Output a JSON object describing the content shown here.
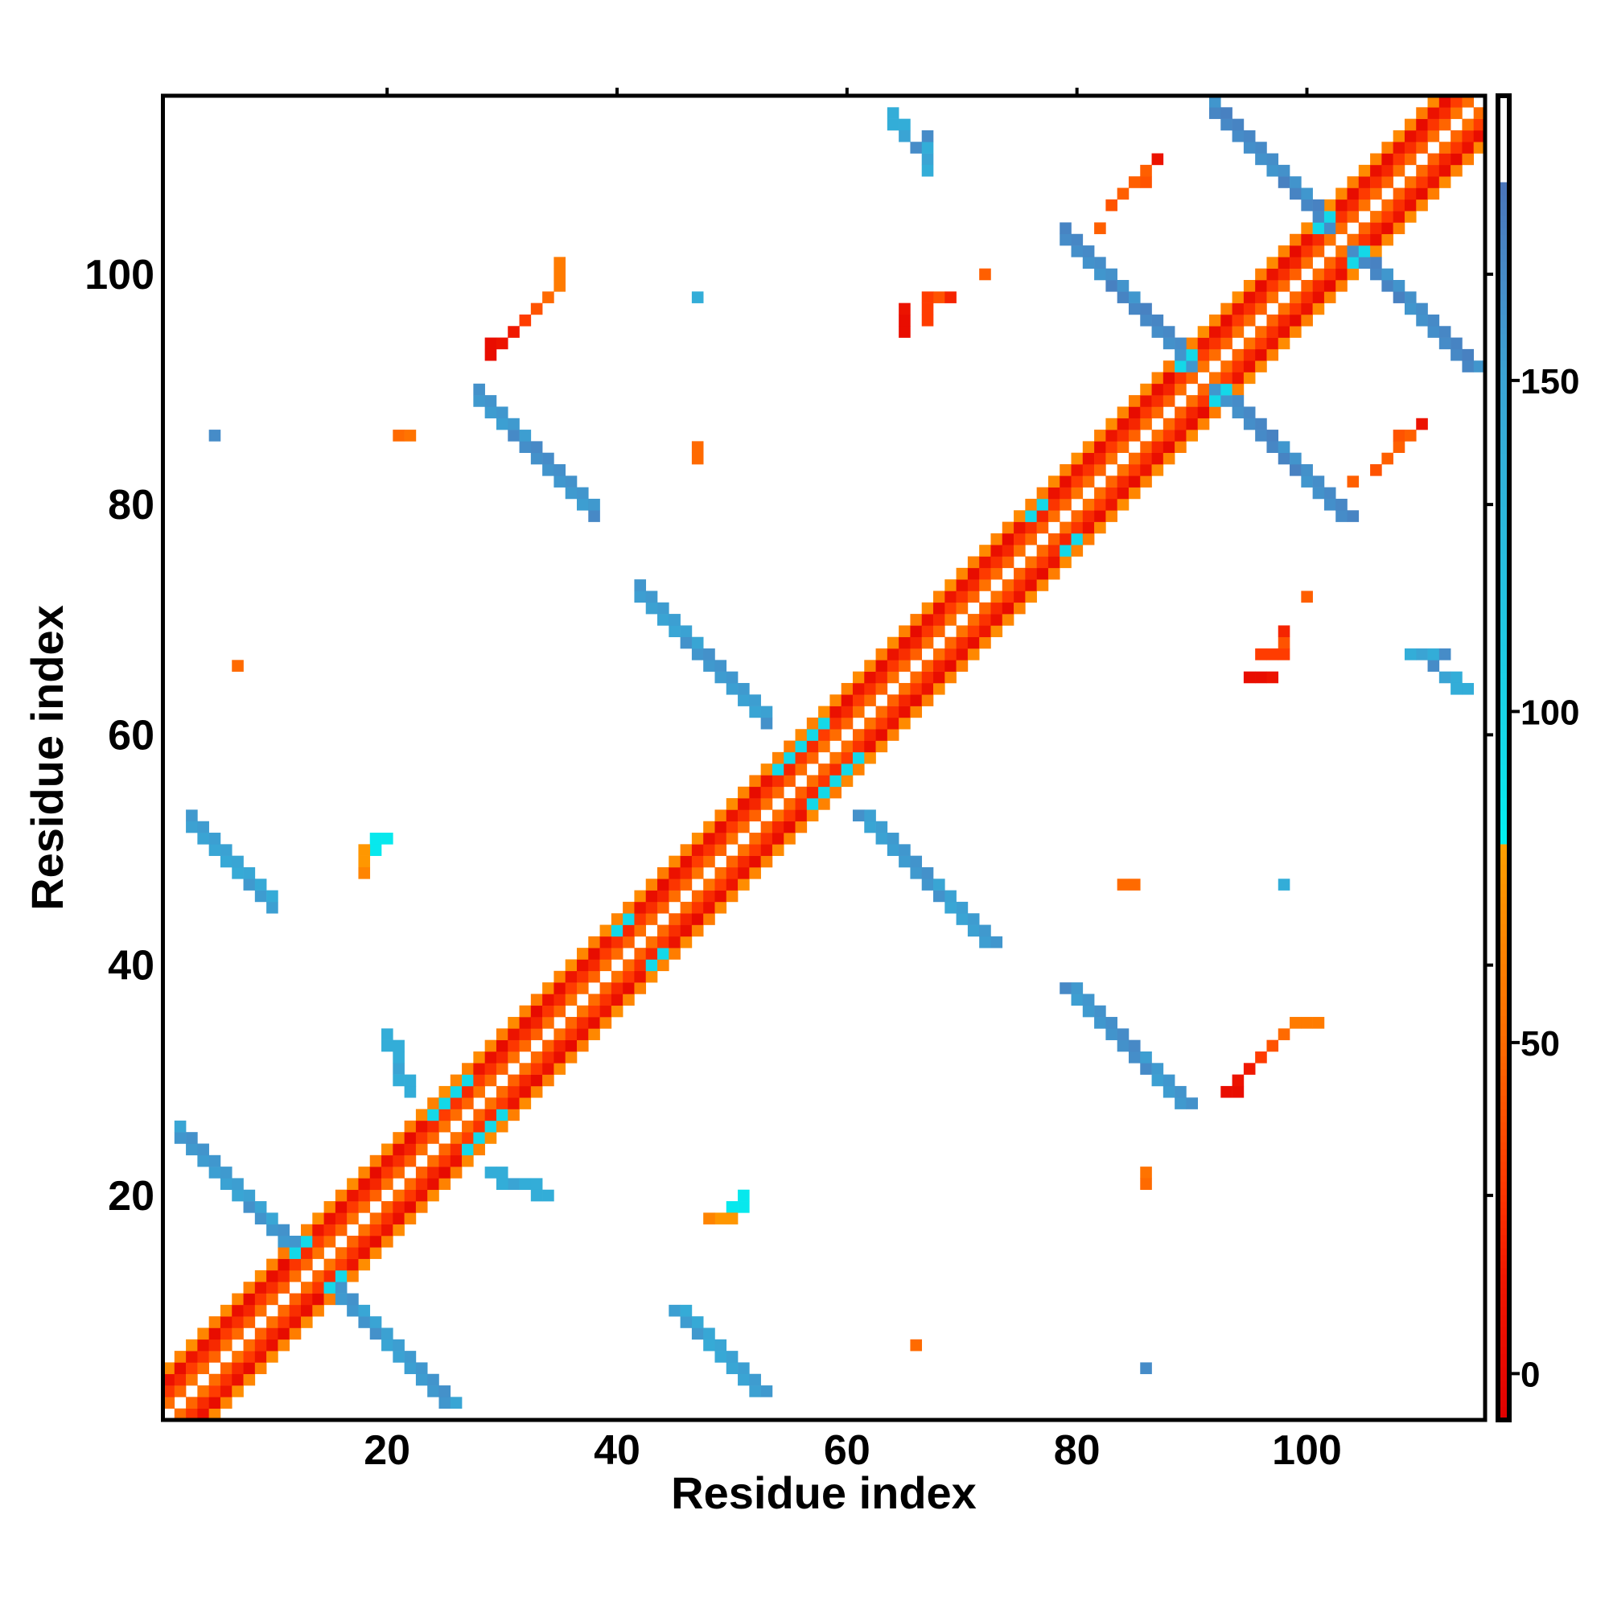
{
  "chart_data": {
    "type": "heatmap",
    "title": "",
    "xlabel": "Residue index",
    "ylabel": "Residue index",
    "xlim": [
      0.5,
      115.5
    ],
    "ylim": [
      0.5,
      115.5
    ],
    "n_residues": 115,
    "x_ticks": [
      20,
      40,
      60,
      80,
      100
    ],
    "y_ticks": [
      20,
      40,
      60,
      80,
      100
    ],
    "colorbar": {
      "range": [
        -7,
        193
      ],
      "ticks": [
        0,
        50,
        100,
        150
      ],
      "stops": [
        {
          "value": -7,
          "color": "#e00000"
        },
        {
          "value": 15,
          "color": "#f01800"
        },
        {
          "value": 30,
          "color": "#ff3c00"
        },
        {
          "value": 50,
          "color": "#ff6a00"
        },
        {
          "value": 65,
          "color": "#ff8400"
        },
        {
          "value": 80,
          "color": "#ffa000"
        },
        {
          "value": 80.01,
          "color": "#00f0f0"
        },
        {
          "value": 95,
          "color": "#14d8e8"
        },
        {
          "value": 120,
          "color": "#24c0e0"
        },
        {
          "value": 150,
          "color": "#3aa4d4"
        },
        {
          "value": 165,
          "color": "#468cc8"
        },
        {
          "value": 180,
          "color": "#4a74b8"
        },
        {
          "value": 180.01,
          "color": "#ffffff"
        },
        {
          "value": 193,
          "color": "#ffffff"
        }
      ]
    },
    "diagonal_band": [
      {
        "offset": 1,
        "value": 45
      },
      {
        "offset": 2,
        "value": 20
      },
      {
        "offset": 3,
        "value": 2
      },
      {
        "offset": 4,
        "value": 60
      }
    ],
    "antiparallel_bands": [
      {
        "i_range": [
          2,
          12
        ],
        "sum": 27,
        "width": 2,
        "value": 155
      },
      {
        "i_range": [
          3,
          10
        ],
        "sum": 55,
        "width": 2,
        "value": 150
      },
      {
        "i_range": [
          28,
          38
        ],
        "sum": 117,
        "width": 2,
        "value": 160
      },
      {
        "i_range": [
          42,
          53
        ],
        "sum": 114,
        "width": 2,
        "value": 155
      },
      {
        "i_range": [
          79,
          90
        ],
        "sum": 182,
        "width": 2,
        "value": 165
      },
      {
        "i_range": [
          92,
          102
        ],
        "sum": 206,
        "width": 2,
        "value": 165
      }
    ],
    "near_diagonal_cyan": [
      [
        24,
        27
      ],
      [
        25,
        28
      ],
      [
        26,
        29
      ],
      [
        27,
        30
      ],
      [
        40,
        43
      ],
      [
        41,
        44
      ],
      [
        55,
        58
      ],
      [
        56,
        59
      ],
      [
        57,
        60
      ],
      [
        58,
        61
      ],
      [
        54,
        57
      ],
      [
        76,
        79
      ],
      [
        77,
        80
      ],
      [
        89,
        92
      ],
      [
        90,
        93
      ],
      [
        101,
        104
      ],
      [
        102,
        105
      ],
      [
        113,
        116
      ],
      [
        12,
        15
      ],
      [
        13,
        16
      ]
    ],
    "points": [
      [
        29,
        94,
        5
      ],
      [
        31,
        95,
        15
      ],
      [
        32,
        96,
        30
      ],
      [
        33,
        97,
        40
      ],
      [
        34,
        98,
        45
      ],
      [
        35,
        99,
        60
      ],
      [
        35,
        100,
        70
      ],
      [
        35,
        101,
        70
      ],
      [
        22,
        86,
        45
      ],
      [
        21,
        86,
        45
      ],
      [
        5,
        86,
        165
      ],
      [
        7,
        66,
        55
      ],
      [
        18,
        49,
        70
      ],
      [
        18,
        48,
        70
      ],
      [
        19,
        50,
        65
      ],
      [
        20,
        51,
        85
      ],
      [
        47,
        84,
        50
      ],
      [
        47,
        98,
        140
      ],
      [
        65,
        95,
        20
      ],
      [
        65,
        96,
        20
      ],
      [
        67,
        97,
        40
      ],
      [
        68,
        98,
        40
      ],
      [
        67,
        98,
        30
      ],
      [
        72,
        100,
        50
      ],
      [
        64,
        114,
        150
      ],
      [
        65,
        113,
        140
      ],
      [
        65,
        112,
        140
      ],
      [
        66,
        111,
        165
      ],
      [
        67,
        110,
        150
      ],
      [
        67,
        109,
        140
      ],
      [
        82,
        104,
        45
      ],
      [
        83,
        106,
        45
      ],
      [
        84,
        107,
        45
      ],
      [
        85,
        108,
        45
      ],
      [
        86,
        108,
        50
      ],
      [
        87,
        110,
        5
      ],
      [
        98,
        69,
        20
      ],
      [
        98,
        68,
        40
      ],
      [
        96,
        67,
        30
      ],
      [
        97,
        67,
        30
      ],
      [
        95,
        65,
        5
      ],
      [
        96,
        65,
        5
      ],
      [
        97,
        65,
        10
      ],
      [
        100,
        72,
        45
      ],
      [
        111,
        67,
        140
      ],
      [
        112,
        67,
        165
      ],
      [
        112,
        65,
        150
      ],
      [
        113,
        64,
        140
      ],
      [
        114,
        64,
        140
      ],
      [
        104,
        82,
        45
      ],
      [
        106,
        83,
        40
      ],
      [
        107,
        84,
        45
      ],
      [
        108,
        85,
        45
      ],
      [
        108,
        86,
        40
      ],
      [
        109,
        86,
        45
      ],
      [
        110,
        87,
        10
      ],
      [
        93,
        29,
        5
      ],
      [
        94,
        30,
        10
      ],
      [
        95,
        31,
        15
      ],
      [
        96,
        32,
        30
      ],
      [
        97,
        33,
        40
      ],
      [
        98,
        34,
        50
      ],
      [
        99,
        35,
        60
      ],
      [
        100,
        35,
        60
      ],
      [
        101,
        35,
        60
      ],
      [
        85,
        47,
        50
      ],
      [
        98,
        47,
        140
      ],
      [
        86,
        21,
        50
      ],
      [
        86,
        22,
        55
      ],
      [
        86,
        5,
        165
      ],
      [
        66,
        7,
        50
      ],
      [
        48,
        18,
        65
      ],
      [
        49,
        18,
        75
      ],
      [
        50,
        18,
        75
      ],
      [
        50,
        19,
        85
      ],
      [
        51,
        19,
        85
      ],
      [
        29,
        22,
        140
      ],
      [
        30,
        22,
        140
      ],
      [
        31,
        21,
        150
      ],
      [
        32,
        21,
        150
      ],
      [
        33,
        21,
        140
      ],
      [
        20,
        33,
        140
      ],
      [
        20,
        34,
        140
      ],
      [
        21,
        31,
        150
      ],
      [
        21,
        32,
        140
      ],
      [
        21,
        30,
        140
      ]
    ]
  }
}
